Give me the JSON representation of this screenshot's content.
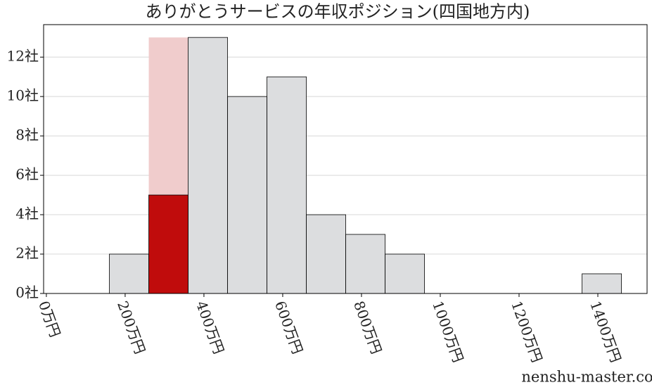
{
  "chart_data": {
    "type": "histogram",
    "title": "ありがとうサービスの年収ポジション(四国地方内)",
    "watermark": "nenshu-master.com",
    "bins": [
      160,
      260,
      360,
      460,
      560,
      660,
      760,
      860,
      960,
      1060,
      1160,
      1260,
      1360,
      1460
    ],
    "values": [
      2,
      13,
      13,
      10,
      11,
      4,
      3,
      2,
      0,
      0,
      0,
      0,
      1
    ],
    "colors": [
      "#dcdddf",
      "#f0cccc",
      "#dcdddf",
      "#dcdddf",
      "#dcdddf",
      "#dcdddf",
      "#dcdddf",
      "#dcdddf",
      "#dcdddf",
      "#dcdddf",
      "#dcdddf",
      "#dcdddf",
      "#dcdddf"
    ],
    "overlay_values": [
      null,
      5,
      null,
      null,
      null,
      null,
      null,
      null,
      null,
      null,
      null,
      null,
      null
    ],
    "overlay_color": "#c00c0c",
    "xlim": [
      -7,
      1525
    ],
    "ylim": [
      0,
      13.65
    ],
    "xticks": [
      {
        "value": 0,
        "label": "0万円"
      },
      {
        "value": 200,
        "label": "200万円"
      },
      {
        "value": 400,
        "label": "400万円"
      },
      {
        "value": 600,
        "label": "600万円"
      },
      {
        "value": 800,
        "label": "800万円"
      },
      {
        "value": 1000,
        "label": "1000万円"
      },
      {
        "value": 1200,
        "label": "1200万円"
      },
      {
        "value": 1400,
        "label": "1400万円"
      }
    ],
    "yticks": [
      {
        "value": 0,
        "label": "0社"
      },
      {
        "value": 2,
        "label": "2社"
      },
      {
        "value": 4,
        "label": "4社"
      },
      {
        "value": 6,
        "label": "6社"
      },
      {
        "value": 8,
        "label": "8社"
      },
      {
        "value": 10,
        "label": "10社"
      },
      {
        "value": 12,
        "label": "12社"
      }
    ],
    "grid": true
  }
}
